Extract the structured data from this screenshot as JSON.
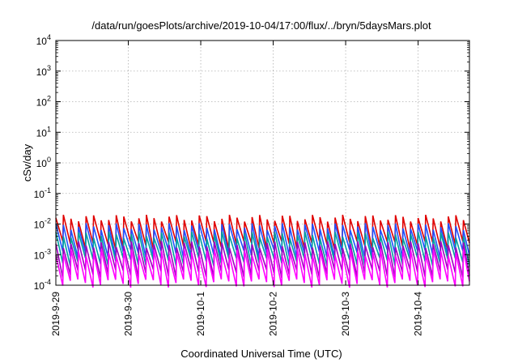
{
  "chart_data": {
    "type": "line",
    "title": "/data/run/goesPlots/archive/2019-10-04/17:00/flux/../bryn/5daysMars.plot",
    "xlabel": "Coordinated Universal Time (UTC)",
    "ylabel": "cSv/day",
    "y_scale": "log",
    "ylim": [
      0.0001,
      10000
    ],
    "xlim": [
      "2019-09-29T00:00",
      "2019-10-04T17:00"
    ],
    "grid": true,
    "legend": "none",
    "y_ticks": [
      {
        "base": "10",
        "exp": "4"
      },
      {
        "base": "10",
        "exp": "3"
      },
      {
        "base": "10",
        "exp": "2"
      },
      {
        "base": "10",
        "exp": "1"
      },
      {
        "base": "10",
        "exp": "0"
      },
      {
        "base": "10",
        "exp": "-1"
      },
      {
        "base": "10",
        "exp": "-2"
      },
      {
        "base": "10",
        "exp": "-3"
      },
      {
        "base": "10",
        "exp": "-4"
      }
    ],
    "x_ticks": [
      "2019-9-29",
      "2019-9-30",
      "2019-10-1",
      "2019-10-2",
      "2019-10-3",
      "2019-10-4"
    ],
    "period_hours": 2.5,
    "series": [
      {
        "color": "#e00000",
        "peak": 0.016,
        "trough": 0.0021
      },
      {
        "color": "#2050ff",
        "peak": 0.0085,
        "trough": 0.0011
      },
      {
        "color": "#00a0a0",
        "peak": 0.0045,
        "trough": 0.0006
      },
      {
        "color": "#a000c0",
        "peak": 0.0022,
        "trough": 0.00025
      },
      {
        "color": "#ff00ff",
        "peak": 0.0012,
        "trough": 0.00012
      }
    ]
  }
}
